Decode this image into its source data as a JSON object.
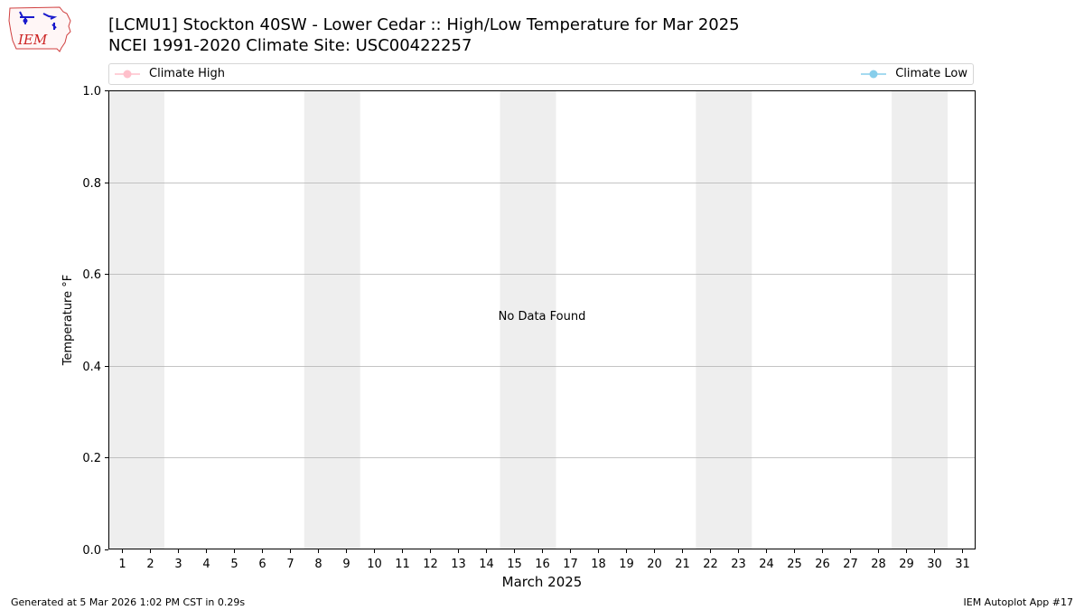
{
  "header": {
    "title_line1": "[LCMU1] Stockton 40SW - Lower Cedar :: High/Low Temperature for Mar 2025",
    "title_line2": "NCEI 1991-2020 Climate Site: USC00422257",
    "logo_text": "IEM"
  },
  "legend": {
    "high_label": "Climate High",
    "low_label": "Climate Low",
    "placement": "top"
  },
  "footer": {
    "generated": "Generated at 5 Mar 2026 1:02 PM CST in 0.29s",
    "app": "IEM Autoplot App #17"
  },
  "colors": {
    "climate_high": "#ffc0cb",
    "climate_low": "#87ceeb",
    "weekend_band": "#eeeeee",
    "grid": "#b0b0b0"
  },
  "chart_data": {
    "type": "line",
    "title": "[LCMU1] Stockton 40SW - Lower Cedar :: High/Low Temperature for Mar 2025",
    "xlabel": "March 2025",
    "ylabel": "Temperature °F",
    "xlim": [
      0.5,
      31.5
    ],
    "ylim": [
      0,
      1
    ],
    "grid": "horizontal",
    "x_ticks": [
      1,
      2,
      3,
      4,
      5,
      6,
      7,
      8,
      9,
      10,
      11,
      12,
      13,
      14,
      15,
      16,
      17,
      18,
      19,
      20,
      21,
      22,
      23,
      24,
      25,
      26,
      27,
      28,
      29,
      30,
      31
    ],
    "y_ticks": [
      0.0,
      0.2,
      0.4,
      0.6,
      0.8,
      1.0
    ],
    "y_tick_labels": [
      "0.0",
      "0.2",
      "0.4",
      "0.6",
      "0.8",
      "1.0"
    ],
    "weekend_bands": [
      [
        0.5,
        2.5
      ],
      [
        7.5,
        9.5
      ],
      [
        14.5,
        16.5
      ],
      [
        21.5,
        23.5
      ],
      [
        28.5,
        30.5
      ]
    ],
    "series": [
      {
        "name": "Climate High",
        "values": []
      },
      {
        "name": "Climate Low",
        "values": []
      }
    ],
    "annotation": "No Data Found"
  }
}
